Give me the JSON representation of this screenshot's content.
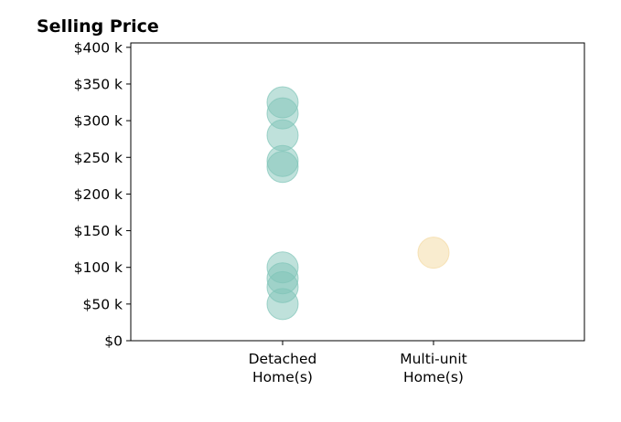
{
  "chart_data": {
    "type": "scatter",
    "title": "Selling Price",
    "xlabel": "",
    "ylabel": "",
    "categories": [
      "Detached\nHome(s)",
      "Multi-unit\nHome(s)"
    ],
    "y_ticks": [
      0,
      50000,
      100000,
      150000,
      200000,
      250000,
      300000,
      350000,
      400000
    ],
    "y_tick_labels": [
      "$0",
      "$50 k",
      "$100 k",
      "$150 k",
      "$200 k",
      "$250 k",
      "$300 k",
      "$350 k",
      "$400 k"
    ],
    "ylim": [
      0,
      406000
    ],
    "grid": false,
    "series": [
      {
        "category": "Detached\nHome(s)",
        "color": "#7fc4b8",
        "values": [
          325000,
          310000,
          280000,
          245000,
          237000,
          100000,
          85000,
          73000,
          50000
        ]
      },
      {
        "category": "Multi-unit\nHome(s)",
        "color": "#f3d9a0",
        "values": [
          120000
        ]
      }
    ]
  }
}
